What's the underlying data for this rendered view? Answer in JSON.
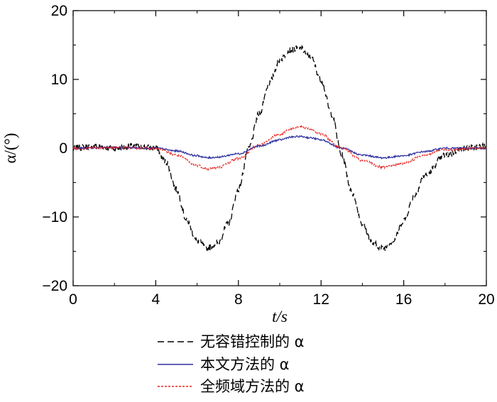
{
  "chart_data": {
    "type": "line",
    "xlabel": "t/s",
    "ylabel": "α/(°)",
    "xlim": [
      0,
      20
    ],
    "ylim": [
      -20,
      20
    ],
    "xticks": [
      "0",
      "4",
      "8",
      "12",
      "16",
      "20"
    ],
    "yticks": [
      "20",
      "10",
      "0",
      "−10",
      "−20"
    ],
    "grid": false,
    "legend_position": "bottom",
    "series": [
      {
        "name": "无容错控制的 α",
        "color": "#000000",
        "style": "dashed",
        "x": [
          0,
          1,
          2,
          3,
          4,
          4.5,
          5,
          5.5,
          6,
          6.5,
          7,
          7.5,
          8,
          8.5,
          9,
          9.5,
          10,
          10.5,
          11,
          11.5,
          12,
          12.5,
          13,
          13.5,
          14,
          14.5,
          15,
          15.5,
          16,
          16.5,
          17,
          18,
          19,
          20
        ],
        "y": [
          0,
          0.3,
          0,
          0.3,
          0,
          -2,
          -6,
          -10.5,
          -13.5,
          -14.5,
          -13.8,
          -11,
          -6,
          0,
          5,
          9.5,
          12.8,
          14.3,
          14.5,
          13.2,
          10,
          5,
          -1,
          -6.5,
          -11,
          -13.8,
          -14.6,
          -13.5,
          -10.5,
          -7,
          -4,
          -1,
          0,
          0.3
        ]
      },
      {
        "name": "本文方法的 α",
        "color": "#2b2fa0",
        "style": "solid",
        "x": [
          0,
          2,
          4,
          5,
          6,
          6.5,
          7,
          8,
          9,
          10,
          10.5,
          11,
          11.5,
          12,
          13,
          14,
          15,
          16,
          17,
          18,
          20
        ],
        "y": [
          0,
          0.1,
          0,
          -0.4,
          -1.1,
          -1.4,
          -1.3,
          -0.8,
          0.3,
          1.2,
          1.6,
          1.7,
          1.5,
          1.2,
          0,
          -1,
          -1.4,
          -1.1,
          -0.5,
          0,
          0
        ]
      },
      {
        "name": "全频域方法的 α",
        "color": "#e8201c",
        "style": "dotted",
        "x": [
          0,
          2,
          4,
          5,
          6,
          6.5,
          7,
          8,
          9,
          10,
          10.5,
          11,
          11.5,
          12,
          13,
          14,
          15,
          16,
          17,
          18,
          20
        ],
        "y": [
          0,
          0.1,
          0,
          -1,
          -2.5,
          -3,
          -2.8,
          -1.5,
          0.5,
          2,
          2.8,
          3.1,
          2.8,
          2,
          0,
          -1.8,
          -2.8,
          -2.2,
          -1,
          -0.2,
          0
        ]
      }
    ]
  }
}
